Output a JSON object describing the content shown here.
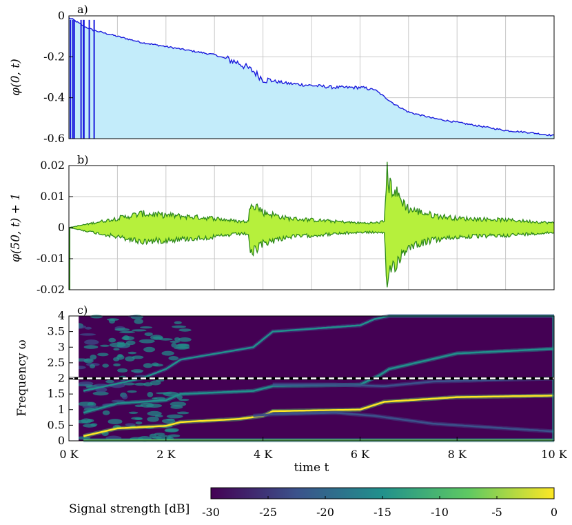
{
  "chart_data": [
    {
      "panel_label": "a)",
      "type": "area",
      "ylabel": "φ(0, t)",
      "xlim": [
        0,
        10000
      ],
      "ylim": [
        -0.6,
        0
      ],
      "yticks": [
        "0",
        "-0.2",
        "-0.4",
        "-0.6"
      ],
      "grid": true,
      "colors": {
        "line": "#1a1adc",
        "fill": "#c3ecfa"
      },
      "x": [
        0,
        100,
        300,
        500,
        1000,
        1500,
        2000,
        2500,
        3000,
        3500,
        3800,
        4000,
        4500,
        5000,
        5500,
        6000,
        6300,
        6700,
        7000,
        7500,
        8000,
        8500,
        9000,
        9500,
        10000
      ],
      "y": [
        -0.01,
        -0.02,
        -0.05,
        -0.07,
        -0.1,
        -0.13,
        -0.15,
        -0.17,
        -0.19,
        -0.23,
        -0.27,
        -0.31,
        -0.33,
        -0.34,
        -0.35,
        -0.35,
        -0.36,
        -0.43,
        -0.47,
        -0.5,
        -0.52,
        -0.54,
        -0.56,
        -0.57,
        -0.585
      ]
    },
    {
      "panel_label": "b)",
      "type": "area",
      "ylabel": "φ(50, t) + 1",
      "xlim": [
        0,
        10000
      ],
      "ylim": [
        -0.02,
        0.02
      ],
      "yticks": [
        "0.02",
        "0.01",
        "0",
        "-0.01",
        "-0.02"
      ],
      "grid": true,
      "colors": {
        "line": "#2f8a1c",
        "fill": "#b6f03c"
      },
      "envelope": {
        "x": [
          0,
          500,
          1000,
          1500,
          2000,
          2500,
          3000,
          3500,
          3700,
          3750,
          3800,
          4000,
          4500,
          5000,
          5500,
          6000,
          6300,
          6500,
          6550,
          6600,
          7000,
          7500,
          8000,
          9000,
          10000
        ],
        "upper": [
          0,
          0.0015,
          0.003,
          0.0045,
          0.004,
          0.0035,
          0.003,
          0.002,
          0.002,
          0.0095,
          0.008,
          0.005,
          0.003,
          0.0025,
          0.002,
          0.0015,
          0.0015,
          0.002,
          0.018,
          0.014,
          0.006,
          0.004,
          0.003,
          0.0025,
          0.0015
        ]
      }
    },
    {
      "panel_label": "c)",
      "type": "heatmap",
      "xlabel": "time t",
      "ylabel": "Frequency ω",
      "xlim": [
        0,
        10000
      ],
      "ylim": [
        0,
        4
      ],
      "xticks": [
        "0 K",
        "2 K",
        "4 K",
        "6 K",
        "8 K",
        "10 K"
      ],
      "yticks": [
        "0",
        "0.5",
        "1",
        "1.5",
        "2",
        "2.5",
        "3",
        "3.5",
        "4"
      ],
      "dashed_line_y": 2,
      "colorbar": {
        "label": "Signal strength [dB]",
        "range": [
          -30,
          0
        ],
        "ticks": [
          "-30",
          "-25",
          "-20",
          "-15",
          "-10",
          "-5",
          "0"
        ],
        "colors": [
          "#440154",
          "#3b528b",
          "#21918c",
          "#5ec962",
          "#fde725"
        ]
      },
      "ridges": [
        {
          "x": [
            300,
            1000,
            2000,
            2300,
            3500,
            4000,
            4200,
            6000,
            6500,
            8000,
            10000
          ],
          "y": [
            0.15,
            0.4,
            0.48,
            0.6,
            0.7,
            0.8,
            0.95,
            1.0,
            1.25,
            1.4,
            1.45
          ],
          "strength": -3
        },
        {
          "x": [
            300,
            1000,
            2000,
            2300,
            3800,
            4200,
            6000,
            6400,
            6600,
            8000,
            10000
          ],
          "y": [
            0.9,
            1.2,
            1.3,
            1.5,
            1.6,
            1.75,
            1.8,
            2.1,
            2.3,
            2.8,
            2.95
          ],
          "strength": -12
        },
        {
          "x": [
            300,
            1500,
            2000,
            2300,
            3800,
            4200,
            6000,
            6300,
            6600,
            10000
          ],
          "y": [
            1.6,
            2.0,
            2.3,
            2.6,
            3.0,
            3.5,
            3.7,
            3.9,
            4.0,
            4.0
          ],
          "strength": -18
        },
        {
          "x": [
            3800,
            4200,
            5500,
            6300,
            7500,
            10000
          ],
          "y": [
            0.8,
            0.85,
            0.9,
            0.8,
            0.55,
            0.3
          ],
          "strength": -20
        },
        {
          "x": [
            4200,
            5500,
            6500,
            7500,
            10000
          ],
          "y": [
            1.8,
            1.8,
            1.75,
            1.9,
            2.0
          ],
          "strength": -20
        },
        {
          "x": [
            300,
            2000,
            4000,
            6000,
            8000,
            10000
          ],
          "y": [
            0.02,
            0.02,
            0.02,
            0.02,
            0.02,
            0.02
          ],
          "strength": -8
        }
      ]
    }
  ]
}
